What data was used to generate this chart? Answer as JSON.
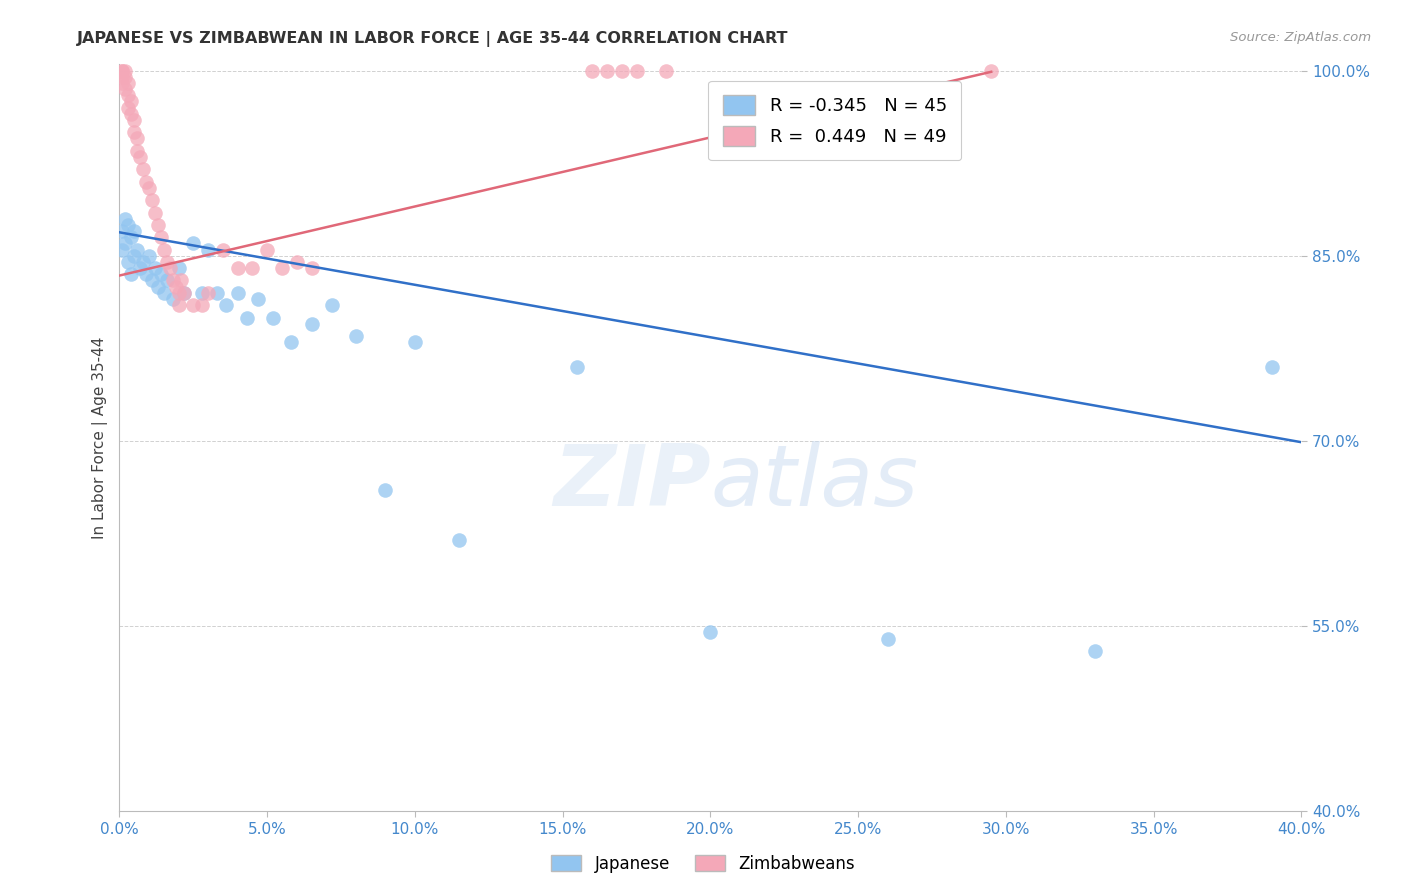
{
  "title": "JAPANESE VS ZIMBABWEAN IN LABOR FORCE | AGE 35-44 CORRELATION CHART",
  "source": "Source: ZipAtlas.com",
  "ylabel": "In Labor Force | Age 35-44",
  "xlim": [
    0.0,
    0.4
  ],
  "ylim": [
    0.4,
    1.005
  ],
  "xticks": [
    0.0,
    0.05,
    0.1,
    0.15,
    0.2,
    0.25,
    0.3,
    0.35,
    0.4
  ],
  "yticks": [
    0.4,
    0.55,
    0.7,
    0.85,
    1.0
  ],
  "ytick_labels": [
    "40.0%",
    "55.0%",
    "70.0%",
    "85.0%",
    "100.0%"
  ],
  "xtick_labels": [
    "0.0%",
    "5.0%",
    "10.0%",
    "15.0%",
    "20.0%",
    "25.0%",
    "30.0%",
    "35.0%",
    "40.0%"
  ],
  "blue_color": "#92c5f0",
  "pink_color": "#f4a8b8",
  "blue_line_color": "#3070c8",
  "pink_line_color": "#e06878",
  "blue_R": -0.345,
  "blue_N": 45,
  "pink_R": 0.449,
  "pink_N": 49,
  "watermark": "ZIPatlas",
  "japanese_x": [
    0.001,
    0.001,
    0.002,
    0.002,
    0.003,
    0.003,
    0.004,
    0.004,
    0.005,
    0.005,
    0.006,
    0.007,
    0.008,
    0.009,
    0.01,
    0.011,
    0.012,
    0.013,
    0.014,
    0.015,
    0.016,
    0.018,
    0.02,
    0.022,
    0.025,
    0.028,
    0.03,
    0.033,
    0.036,
    0.04,
    0.043,
    0.047,
    0.052,
    0.058,
    0.065,
    0.072,
    0.08,
    0.09,
    0.1,
    0.115,
    0.155,
    0.2,
    0.26,
    0.33,
    0.39
  ],
  "japanese_y": [
    0.87,
    0.855,
    0.88,
    0.86,
    0.875,
    0.845,
    0.865,
    0.835,
    0.87,
    0.85,
    0.855,
    0.84,
    0.845,
    0.835,
    0.85,
    0.83,
    0.84,
    0.825,
    0.835,
    0.82,
    0.83,
    0.815,
    0.84,
    0.82,
    0.86,
    0.82,
    0.855,
    0.82,
    0.81,
    0.82,
    0.8,
    0.815,
    0.8,
    0.78,
    0.795,
    0.81,
    0.785,
    0.66,
    0.78,
    0.62,
    0.76,
    0.545,
    0.54,
    0.53,
    0.76
  ],
  "zimbabwean_x": [
    0.001,
    0.001,
    0.001,
    0.001,
    0.002,
    0.002,
    0.002,
    0.003,
    0.003,
    0.003,
    0.004,
    0.004,
    0.005,
    0.005,
    0.006,
    0.006,
    0.007,
    0.008,
    0.009,
    0.01,
    0.011,
    0.012,
    0.013,
    0.014,
    0.015,
    0.016,
    0.017,
    0.018,
    0.019,
    0.02,
    0.02,
    0.021,
    0.022,
    0.025,
    0.028,
    0.03,
    0.035,
    0.04,
    0.045,
    0.05,
    0.055,
    0.06,
    0.065,
    0.16,
    0.165,
    0.17,
    0.175,
    0.185,
    0.295
  ],
  "zimbabwean_y": [
    1.0,
    1.0,
    0.995,
    0.99,
    1.0,
    0.995,
    0.985,
    0.99,
    0.98,
    0.97,
    0.975,
    0.965,
    0.96,
    0.95,
    0.945,
    0.935,
    0.93,
    0.92,
    0.91,
    0.905,
    0.895,
    0.885,
    0.875,
    0.865,
    0.855,
    0.845,
    0.84,
    0.83,
    0.825,
    0.81,
    0.82,
    0.83,
    0.82,
    0.81,
    0.81,
    0.82,
    0.855,
    0.84,
    0.84,
    0.855,
    0.84,
    0.845,
    0.84,
    1.0,
    1.0,
    1.0,
    1.0,
    1.0,
    1.0
  ],
  "blue_trendline_x": [
    0.0,
    0.4
  ],
  "blue_trendline_y": [
    0.869,
    0.699
  ],
  "pink_trendline_x": [
    0.0,
    0.295
  ],
  "pink_trendline_y": [
    0.834,
    0.999
  ]
}
